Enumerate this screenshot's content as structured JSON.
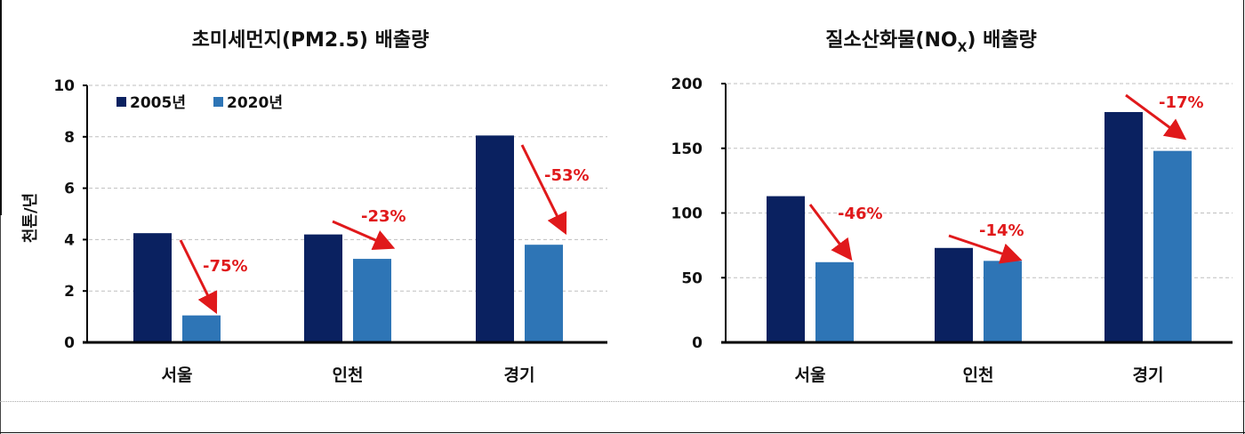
{
  "chart_data": [
    {
      "type": "bar",
      "title": "초미세먼지(PM2.5)  배출량",
      "xlabel": "",
      "ylabel": "천톤/년",
      "ylim": [
        0,
        10
      ],
      "yticks": [
        0,
        2,
        4,
        6,
        8,
        10
      ],
      "grid": true,
      "legend_position": "top-left",
      "categories": [
        "서울",
        "인천",
        "경기"
      ],
      "series": [
        {
          "name": "2005년",
          "color": "#0a2160",
          "values": [
            4.25,
            4.2,
            8.05
          ]
        },
        {
          "name": "2020년",
          "color": "#2e75b6",
          "values": [
            1.05,
            3.25,
            3.8
          ]
        }
      ],
      "annotations": [
        "-75%",
        "-23%",
        "-53%"
      ]
    },
    {
      "type": "bar",
      "title_main": "질소산화물(NO",
      "title_sub": "X",
      "title_tail": ")  배출량",
      "title": "질소산화물(NOX)  배출량",
      "xlabel": "",
      "ylabel": "",
      "ylim": [
        0,
        200
      ],
      "yticks": [
        0,
        50,
        100,
        150,
        200
      ],
      "grid": true,
      "categories": [
        "서울",
        "인천",
        "경기"
      ],
      "series": [
        {
          "name": "2005년",
          "color": "#0a2160",
          "values": [
            113,
            73,
            178
          ]
        },
        {
          "name": "2020년",
          "color": "#2e75b6",
          "values": [
            62,
            63,
            148
          ]
        }
      ],
      "annotations": [
        "-46%",
        "-14%",
        "-17%"
      ]
    }
  ],
  "colors": {
    "series_2005": "#0a2160",
    "series_2020": "#2e75b6",
    "annotation": "#e0191b",
    "grid": "#bfbfbf",
    "axis": "#000000"
  }
}
